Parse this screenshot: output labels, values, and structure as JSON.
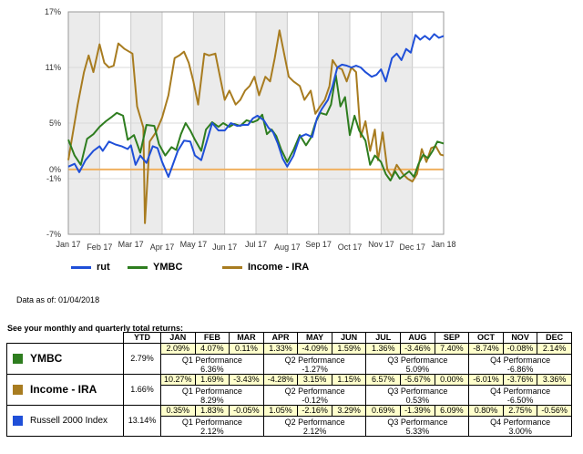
{
  "chart_data": {
    "type": "line",
    "x_labels": [
      "Jan 17",
      "Feb 17",
      "Mar 17",
      "Apr 17",
      "May 17",
      "Jun 17",
      "Jul 17",
      "Aug 17",
      "Sep 17",
      "Oct 17",
      "Nov 17",
      "Dec 17",
      "Jan 18"
    ],
    "y_ticks": [
      "17%",
      "11%",
      "5%",
      "0%",
      "-1%",
      "-7%"
    ],
    "ylim": [
      -7,
      17
    ],
    "zero_line_color": "#f0b060",
    "series": [
      {
        "name": "rut",
        "color": "#1f4fd8",
        "points": [
          [
            0,
            0.3
          ],
          [
            0.2,
            0.6
          ],
          [
            0.35,
            -0.3
          ],
          [
            0.55,
            1.0
          ],
          [
            0.8,
            2.0
          ],
          [
            1.0,
            2.5
          ],
          [
            1.1,
            2.0
          ],
          [
            1.3,
            3.0
          ],
          [
            1.5,
            2.7
          ],
          [
            1.7,
            2.5
          ],
          [
            1.9,
            2.2
          ],
          [
            2.0,
            2.6
          ],
          [
            2.15,
            0.5
          ],
          [
            2.3,
            1.5
          ],
          [
            2.5,
            0.7
          ],
          [
            2.7,
            2.5
          ],
          [
            2.85,
            2.3
          ],
          [
            3.0,
            0.8
          ],
          [
            3.2,
            -0.8
          ],
          [
            3.5,
            2.0
          ],
          [
            3.7,
            3.1
          ],
          [
            3.9,
            3.0
          ],
          [
            4.05,
            1.5
          ],
          [
            4.25,
            1.0
          ],
          [
            4.45,
            3.3
          ],
          [
            4.6,
            5.0
          ],
          [
            4.8,
            4.2
          ],
          [
            5.0,
            4.2
          ],
          [
            5.2,
            5.0
          ],
          [
            5.4,
            4.7
          ],
          [
            5.6,
            4.8
          ],
          [
            5.75,
            4.8
          ],
          [
            5.9,
            5.5
          ],
          [
            6.05,
            5.8
          ],
          [
            6.25,
            5.3
          ],
          [
            6.4,
            4.5
          ],
          [
            6.55,
            4.0
          ],
          [
            6.7,
            2.8
          ],
          [
            6.85,
            1.2
          ],
          [
            7.0,
            0.3
          ],
          [
            7.2,
            1.5
          ],
          [
            7.4,
            3.5
          ],
          [
            7.6,
            3.8
          ],
          [
            7.8,
            3.5
          ],
          [
            7.95,
            5.5
          ],
          [
            8.1,
            6.5
          ],
          [
            8.3,
            7.5
          ],
          [
            8.45,
            9.0
          ],
          [
            8.6,
            11.0
          ],
          [
            8.75,
            11.3
          ],
          [
            8.9,
            11.2
          ],
          [
            9.05,
            11.0
          ],
          [
            9.2,
            11.2
          ],
          [
            9.35,
            11.0
          ],
          [
            9.5,
            10.5
          ],
          [
            9.7,
            10.0
          ],
          [
            9.85,
            10.2
          ],
          [
            10.0,
            10.8
          ],
          [
            10.15,
            9.5
          ],
          [
            10.35,
            12.0
          ],
          [
            10.5,
            12.5
          ],
          [
            10.65,
            11.8
          ],
          [
            10.8,
            13.0
          ],
          [
            10.95,
            12.6
          ],
          [
            11.1,
            14.5
          ],
          [
            11.25,
            14.0
          ],
          [
            11.4,
            14.4
          ],
          [
            11.55,
            14.0
          ],
          [
            11.7,
            14.6
          ],
          [
            11.85,
            14.2
          ],
          [
            12.0,
            14.4
          ]
        ]
      },
      {
        "name": "YMBC",
        "color": "#2e7d1f",
        "points": [
          [
            0,
            3.2
          ],
          [
            0.2,
            1.5
          ],
          [
            0.4,
            0.5
          ],
          [
            0.6,
            3.3
          ],
          [
            0.8,
            3.8
          ],
          [
            1.0,
            4.6
          ],
          [
            1.2,
            5.2
          ],
          [
            1.4,
            5.7
          ],
          [
            1.55,
            6.1
          ],
          [
            1.75,
            5.8
          ],
          [
            1.9,
            3.2
          ],
          [
            2.1,
            3.7
          ],
          [
            2.3,
            1.8
          ],
          [
            2.5,
            4.8
          ],
          [
            2.75,
            4.7
          ],
          [
            2.9,
            2.7
          ],
          [
            3.1,
            1.5
          ],
          [
            3.3,
            2.4
          ],
          [
            3.45,
            2.1
          ],
          [
            3.6,
            3.8
          ],
          [
            3.75,
            5.0
          ],
          [
            3.9,
            4.2
          ],
          [
            4.05,
            3.2
          ],
          [
            4.25,
            2.0
          ],
          [
            4.4,
            4.3
          ],
          [
            4.6,
            5.1
          ],
          [
            4.8,
            4.6
          ],
          [
            4.95,
            5.0
          ],
          [
            5.15,
            4.6
          ],
          [
            5.3,
            4.9
          ],
          [
            5.5,
            4.7
          ],
          [
            5.7,
            5.3
          ],
          [
            5.9,
            5.1
          ],
          [
            6.05,
            5.3
          ],
          [
            6.2,
            5.9
          ],
          [
            6.35,
            3.8
          ],
          [
            6.5,
            4.3
          ],
          [
            6.65,
            3.6
          ],
          [
            6.8,
            2.2
          ],
          [
            7.0,
            0.8
          ],
          [
            7.2,
            2.1
          ],
          [
            7.4,
            3.7
          ],
          [
            7.6,
            2.6
          ],
          [
            7.75,
            3.4
          ],
          [
            7.9,
            5.0
          ],
          [
            8.05,
            6.1
          ],
          [
            8.25,
            5.9
          ],
          [
            8.4,
            7.0
          ],
          [
            8.55,
            10.2
          ],
          [
            8.7,
            6.8
          ],
          [
            8.85,
            7.8
          ],
          [
            9.0,
            3.7
          ],
          [
            9.15,
            5.8
          ],
          [
            9.3,
            4.2
          ],
          [
            9.5,
            3.1
          ],
          [
            9.65,
            0.5
          ],
          [
            9.8,
            1.5
          ],
          [
            10.0,
            0.8
          ],
          [
            10.15,
            -0.5
          ],
          [
            10.3,
            -1.2
          ],
          [
            10.45,
            -0.2
          ],
          [
            10.6,
            -1.0
          ],
          [
            10.75,
            -0.6
          ],
          [
            10.9,
            -0.2
          ],
          [
            11.05,
            -0.8
          ],
          [
            11.2,
            0.6
          ],
          [
            11.35,
            1.6
          ],
          [
            11.5,
            1.2
          ],
          [
            11.65,
            2.0
          ],
          [
            11.8,
            3.0
          ],
          [
            12.0,
            2.8
          ]
        ]
      },
      {
        "name": "Income - IRA",
        "color": "#a87c20",
        "points": [
          [
            0,
            1.0
          ],
          [
            0.1,
            3.0
          ],
          [
            0.3,
            7.0
          ],
          [
            0.5,
            10.5
          ],
          [
            0.65,
            12.3
          ],
          [
            0.8,
            10.5
          ],
          [
            1.0,
            13.5
          ],
          [
            1.15,
            11.5
          ],
          [
            1.3,
            11.0
          ],
          [
            1.45,
            11.2
          ],
          [
            1.6,
            13.6
          ],
          [
            1.8,
            13.0
          ],
          [
            1.95,
            12.7
          ],
          [
            2.05,
            12.5
          ],
          [
            2.2,
            6.8
          ],
          [
            2.4,
            4.5
          ],
          [
            2.45,
            -5.8
          ],
          [
            2.6,
            3.0
          ],
          [
            2.8,
            4.0
          ],
          [
            3.0,
            5.6
          ],
          [
            3.2,
            8.0
          ],
          [
            3.4,
            12.0
          ],
          [
            3.55,
            12.3
          ],
          [
            3.7,
            12.7
          ],
          [
            3.85,
            11.5
          ],
          [
            4.0,
            9.5
          ],
          [
            4.15,
            7.0
          ],
          [
            4.35,
            12.5
          ],
          [
            4.5,
            12.3
          ],
          [
            4.7,
            12.5
          ],
          [
            4.85,
            10.0
          ],
          [
            5.0,
            7.5
          ],
          [
            5.15,
            8.5
          ],
          [
            5.35,
            7.0
          ],
          [
            5.5,
            7.5
          ],
          [
            5.65,
            8.5
          ],
          [
            5.8,
            9.0
          ],
          [
            5.95,
            10.0
          ],
          [
            6.1,
            8.0
          ],
          [
            6.3,
            10.0
          ],
          [
            6.45,
            9.5
          ],
          [
            6.6,
            12.0
          ],
          [
            6.75,
            15.0
          ],
          [
            6.9,
            12.5
          ],
          [
            7.05,
            10.0
          ],
          [
            7.2,
            9.5
          ],
          [
            7.4,
            9.0
          ],
          [
            7.55,
            7.5
          ],
          [
            7.75,
            8.5
          ],
          [
            7.9,
            6.0
          ],
          [
            8.05,
            6.8
          ],
          [
            8.2,
            7.5
          ],
          [
            8.35,
            9.0
          ],
          [
            8.45,
            11.8
          ],
          [
            8.6,
            11.0
          ],
          [
            8.75,
            10.8
          ],
          [
            8.9,
            9.5
          ],
          [
            9.05,
            11.0
          ],
          [
            9.2,
            10.5
          ],
          [
            9.35,
            3.5
          ],
          [
            9.5,
            5.2
          ],
          [
            9.65,
            2.0
          ],
          [
            9.8,
            4.3
          ],
          [
            9.9,
            1.0
          ],
          [
            10.05,
            4.0
          ],
          [
            10.2,
            0.0
          ],
          [
            10.35,
            -0.8
          ],
          [
            10.5,
            0.5
          ],
          [
            10.7,
            -0.5
          ],
          [
            10.85,
            -1.0
          ],
          [
            11.0,
            -1.3
          ],
          [
            11.15,
            -0.5
          ],
          [
            11.3,
            2.2
          ],
          [
            11.45,
            0.8
          ],
          [
            11.6,
            2.3
          ],
          [
            11.75,
            2.5
          ],
          [
            11.9,
            1.6
          ],
          [
            12.0,
            1.5
          ]
        ]
      }
    ],
    "legend": "below"
  },
  "legend_labels": {
    "rut": "rut",
    "ymbc": "YMBC",
    "ira": "Income - IRA"
  },
  "as_of": "Data as of: 01/04/2018",
  "table_title": "See your monthly and quarterly total returns:",
  "table": {
    "ytd_header": "YTD",
    "months": [
      "JAN",
      "FEB",
      "MAR",
      "APR",
      "MAY",
      "JUN",
      "JUL",
      "AUG",
      "SEP",
      "OCT",
      "NOV",
      "DEC"
    ],
    "rows": [
      {
        "name": "YMBC",
        "swatch": "#2e7d1f",
        "style": "big",
        "ytd": "2.79%",
        "monthly": [
          "2.09%",
          "4.07%",
          "0.11%",
          "1.33%",
          "-4.09%",
          "1.59%",
          "1.36%",
          "-3.46%",
          "7.40%",
          "-8.74%",
          "-0.08%",
          "2.14%"
        ],
        "quarters": [
          {
            "label": "Q1 Performance",
            "value": "6.36%"
          },
          {
            "label": "Q2 Performance",
            "value": "-1.27%"
          },
          {
            "label": "Q3 Performance",
            "value": "5.09%"
          },
          {
            "label": "Q4 Performance",
            "value": "-6.86%"
          }
        ]
      },
      {
        "name": "Income - IRA",
        "swatch": "#a87c20",
        "style": "big",
        "ytd": "1.66%",
        "monthly": [
          "10.27%",
          "1.69%",
          "-3.43%",
          "-4.28%",
          "3.15%",
          "1.15%",
          "6.57%",
          "-5.67%",
          "0.00%",
          "-6.01%",
          "-3.76%",
          "3.36%"
        ],
        "quarters": [
          {
            "label": "Q1 Performance",
            "value": "8.29%"
          },
          {
            "label": "Q2 Performance",
            "value": "-0.12%"
          },
          {
            "label": "Q3 Performance",
            "value": "0.53%"
          },
          {
            "label": "Q4 Performance",
            "value": "-6.50%"
          }
        ]
      },
      {
        "name": "Russell 2000 Index",
        "swatch": "#1f4fd8",
        "style": "small",
        "ytd": "13.14%",
        "monthly": [
          "0.35%",
          "1.83%",
          "-0.05%",
          "1.05%",
          "-2.16%",
          "3.29%",
          "0.69%",
          "-1.39%",
          "6.09%",
          "0.80%",
          "2.75%",
          "-0.56%"
        ],
        "quarters": [
          {
            "label": "Q1 Performance",
            "value": "2.12%"
          },
          {
            "label": "Q2 Performance",
            "value": "2.12%"
          },
          {
            "label": "Q3 Performance",
            "value": "5.33%"
          },
          {
            "label": "Q4 Performance",
            "value": "3.00%"
          }
        ]
      }
    ]
  }
}
